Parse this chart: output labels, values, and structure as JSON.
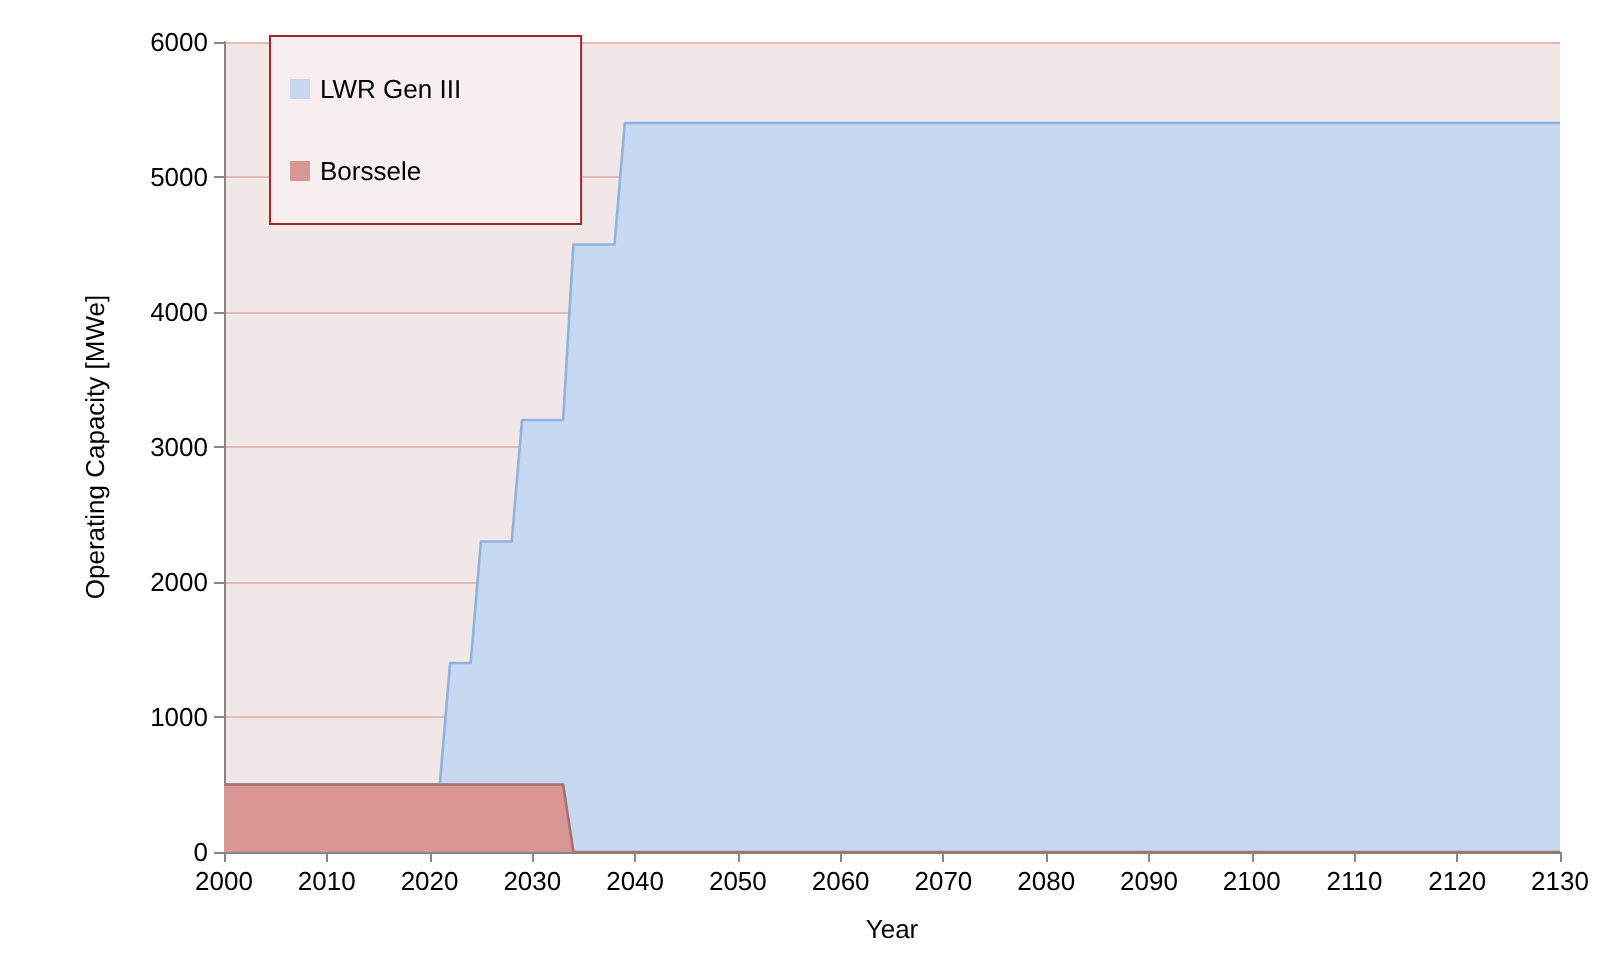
{
  "chart_data": {
    "type": "area",
    "stacked": true,
    "xlabel": "Year",
    "ylabel": "Operating Capacity [MWe]",
    "x": [
      2000,
      2021,
      2022,
      2024,
      2025,
      2028,
      2029,
      2033,
      2034,
      2038,
      2039,
      2130
    ],
    "series": [
      {
        "name": "Borssele",
        "color": "#d99694",
        "values": [
          500,
          500,
          500,
          500,
          500,
          500,
          500,
          500,
          0,
          0,
          0,
          0
        ]
      },
      {
        "name": "LWR Gen III",
        "color": "#c6d9f1",
        "values": [
          0,
          0,
          900,
          900,
          1800,
          1800,
          2700,
          2700,
          4500,
          4500,
          5400,
          5400
        ]
      }
    ],
    "xlim": [
      2000,
      2130
    ],
    "xticks": [
      2000,
      2010,
      2020,
      2030,
      2040,
      2050,
      2060,
      2070,
      2080,
      2090,
      2100,
      2110,
      2120,
      2130
    ],
    "ylim": [
      0,
      6000
    ],
    "yticks": [
      0,
      1000,
      2000,
      3000,
      4000,
      5000,
      6000
    ],
    "grid": "y",
    "legend": "top left"
  }
}
